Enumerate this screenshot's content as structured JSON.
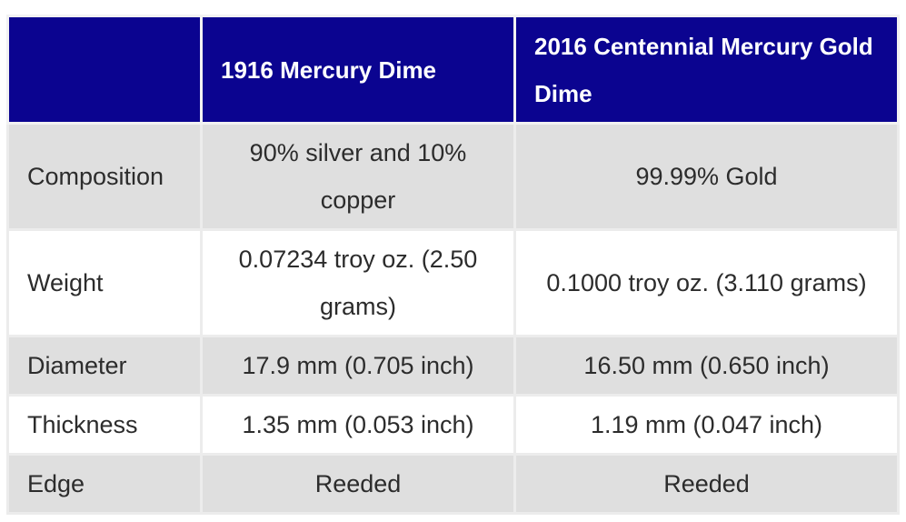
{
  "table": {
    "header": [
      "",
      "1916 Mercury Dime",
      "2016 Centennial Mercury Gold Dime"
    ],
    "rows": [
      [
        "Composition",
        "90% silver and 10% copper",
        "99.99% Gold"
      ],
      [
        "Weight",
        "0.07234 troy oz. (2.50 grams)",
        "0.1000 troy oz. (3.110 grams)"
      ],
      [
        "Diameter",
        "17.9 mm (0.705 inch)",
        "16.50 mm (0.650 inch)"
      ],
      [
        "Thickness",
        "1.35 mm (0.053 inch)",
        "1.19 mm (0.047 inch)"
      ],
      [
        "Edge",
        "Reeded",
        "Reeded"
      ]
    ]
  },
  "colors": {
    "header_bg": "#0b0490",
    "header_text": "#ffffff",
    "row_shade": "#dfdfdf",
    "row_plain": "#ffffff",
    "border": "#ececec",
    "body_text": "#2c2c2c"
  }
}
